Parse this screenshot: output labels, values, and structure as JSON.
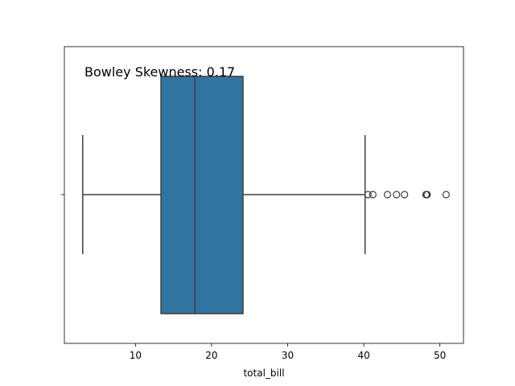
{
  "chart_data": {
    "type": "box",
    "orientation": "horizontal",
    "xlabel": "total_bill",
    "ylabel": "",
    "xlim": [
      0.66,
      53.1
    ],
    "xticks": [
      10,
      20,
      30,
      40,
      50
    ],
    "annotation": "Bowley Skewness: 0.17",
    "box_color": "#3274a1",
    "line_color": "#3f3f3f",
    "grid": false,
    "box": {
      "whisker_low": 3.07,
      "q1": 13.35,
      "median": 17.8,
      "q3": 24.13,
      "whisker_high": 40.17
    },
    "outliers": [
      40.55,
      41.19,
      43.11,
      44.3,
      45.35,
      48.17,
      48.27,
      48.33,
      50.81
    ]
  }
}
